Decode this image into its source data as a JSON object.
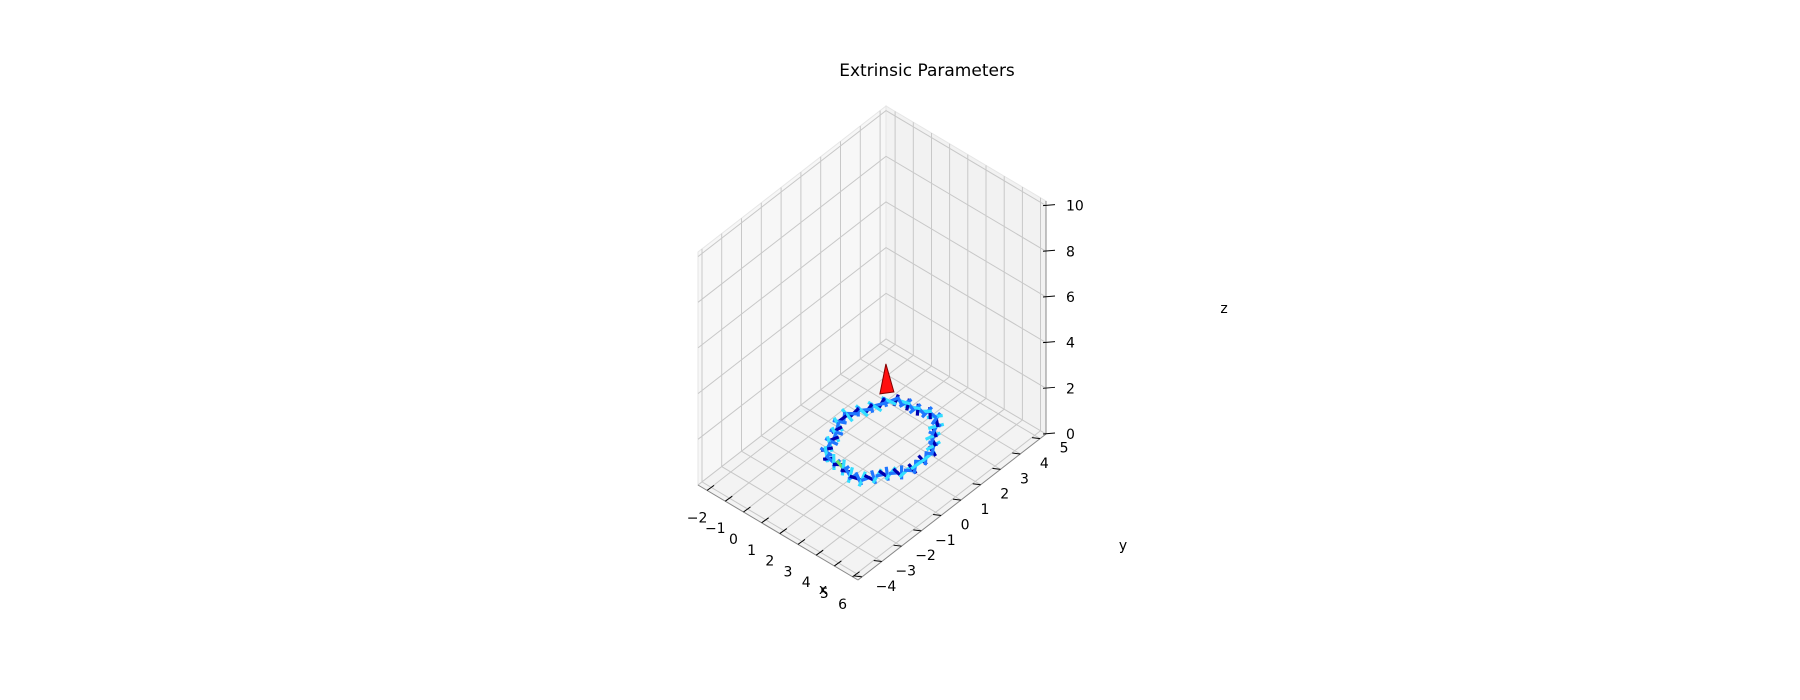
{
  "chart_data": {
    "type": "scatter",
    "projection": "3d",
    "title": "Extrinsic Parameters",
    "xlabel": "x",
    "ylabel": "y",
    "zlabel": "z",
    "xlim": [
      -2.5,
      6.3
    ],
    "ylim": [
      -4.2,
      5.3
    ],
    "zlim": [
      0,
      10.2
    ],
    "xticks": [
      -2,
      -1,
      0,
      1,
      2,
      3,
      4,
      5,
      6
    ],
    "yticks": [
      -4,
      -3,
      -2,
      -1,
      0,
      1,
      2,
      3,
      4,
      5
    ],
    "zticks": [
      0,
      2,
      4,
      6,
      8,
      10
    ],
    "grid": true,
    "ring": {
      "center_x": 2.0,
      "center_y": 1.0,
      "radius": 2.0,
      "z": 0.6,
      "marker_count": 96
    },
    "origin_marker": {
      "x": 0,
      "y": 3,
      "z": 0.5
    },
    "colors": {
      "pane_left": "#f7f7f7",
      "pane_back": "#f2f2f2",
      "pane_floor": "#f3f3f3",
      "grid": "#c8c8c8",
      "marker_light": "#1f77ff",
      "marker_dark": "#0000b0",
      "marker_cyan": "#33ddff",
      "marker_green": "#66dd66",
      "origin_red": "#ff1010",
      "origin_dark": "#800000"
    }
  }
}
